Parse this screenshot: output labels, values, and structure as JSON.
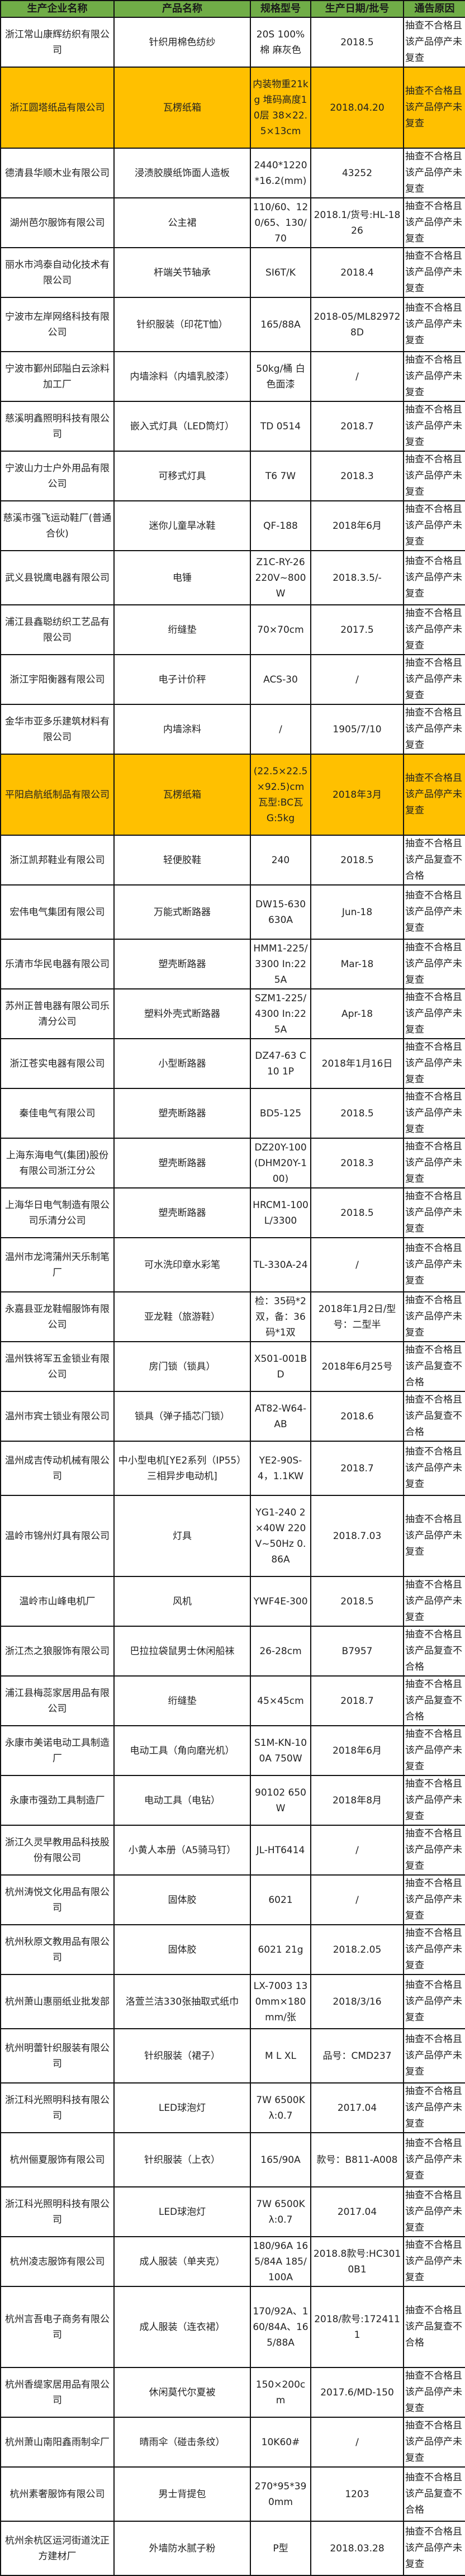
{
  "header": [
    "生产企业名称",
    "产品名称",
    "规格型号",
    "生产日期/批号",
    "通告原因"
  ],
  "colors": {
    "header_bg": "#70ad47",
    "highlight_bg": "#ffc000"
  },
  "rows": [
    {
      "company": "浙江常山康辉纺织有限公司",
      "product": "针织用棉色纺纱",
      "spec": "20S 100%棉 麻灰色",
      "date": "2018.5",
      "reason": "抽查不合格且该产品停产未复查",
      "highlight": false
    },
    {
      "company": "浙江圆塔纸品有限公司",
      "product": "瓦楞纸箱",
      "spec": "内装物重21kg 堆码高度10层 38×22.5×13cm",
      "date": "2018.04.20",
      "reason": "抽查不合格且该产品停产未复查",
      "highlight": true
    },
    {
      "company": "德清县华顺木业有限公司",
      "product": "浸渍胶膜纸饰面人造板",
      "spec": "2440*1220*16.2(mm)",
      "date": "43252",
      "reason": "抽查不合格且该产品停产未复查",
      "highlight": false
    },
    {
      "company": "湖州芭尔服饰有限公司",
      "product": "公主裙",
      "spec": "110/60、120/65、130/70",
      "date": "2018.1/货号:HL-1826",
      "reason": "抽查不合格且该产品停产未复查",
      "highlight": false
    },
    {
      "company": "丽水市鸿泰自动化技术有限公司",
      "product": "杆端关节轴承",
      "spec": "SI6T/K",
      "date": "2018.4",
      "reason": "抽查不合格且该产品停产未复查",
      "highlight": false
    },
    {
      "company": "宁波市左岸网络科技有限公司",
      "product": "针织服装（印花T恤）",
      "spec": "165/88A",
      "date": "2018-05/ML829728D",
      "reason": "抽查不合格且该产品停产未复查",
      "highlight": false
    },
    {
      "company": "宁波市鄞州邱隘白云涂料加工厂",
      "product": "内墙涂料（内墙乳胶漆）",
      "spec": "50kg/桶 白色面漆",
      "date": "/",
      "reason": "抽查不合格且该产品停产未复查",
      "highlight": false
    },
    {
      "company": "慈溪明鑫照明科技有限公司",
      "product": "嵌入式灯具（LED筒灯）",
      "spec": "TD 0514",
      "date": "2018.7",
      "reason": "抽查不合格且该产品停产未复查",
      "highlight": false
    },
    {
      "company": "宁波山力士户外用品有限公司",
      "product": "可移式灯具",
      "spec": "T6 7W",
      "date": "2018.3",
      "reason": "抽查不合格且该产品停产未复查",
      "highlight": false
    },
    {
      "company": "慈溪市强飞运动鞋厂(普通合伙)",
      "product": "迷你儿童旱冰鞋",
      "spec": "QF-188",
      "date": "2018年6月",
      "reason": "抽查不合格且该产品停产未复查",
      "highlight": false
    },
    {
      "company": "武义县锐鹰电器有限公司",
      "product": "电锤",
      "spec": "Z1C-RY-26 220V~800W",
      "date": "2018.3.5/-",
      "reason": "抽查不合格且该产品停产未复查",
      "highlight": false
    },
    {
      "company": "浦江县鑫聪纺织工艺品有限公司",
      "product": "绗缝垫",
      "spec": "70×70cm",
      "date": "2017.5",
      "reason": "抽查不合格且该产品停产未复查",
      "highlight": false
    },
    {
      "company": "浙江宇阳衡器有限公司",
      "product": "电子计价秤",
      "spec": "ACS-30",
      "date": "/",
      "reason": "抽查不合格且该产品停产未复查",
      "highlight": false
    },
    {
      "company": "金华市亚多乐建筑材料有限公司",
      "product": "内墙涂料",
      "spec": "/",
      "date": "1905/7/10",
      "reason": "抽查不合格且该产品停产未复查",
      "highlight": false
    },
    {
      "company": "平阳启航纸制品有限公司",
      "product": "瓦楞纸箱",
      "spec": "(22.5×22.5×92.5)cm 瓦型:BC瓦 G:5kg",
      "date": "2018年3月",
      "reason": "抽查不合格且该产品停产未复查",
      "highlight": true
    },
    {
      "company": "浙江凯邦鞋业有限公司",
      "product": "轻便胶鞋",
      "spec": "240",
      "date": "2018.5",
      "reason": "抽查不合格且该产品复查不合格",
      "highlight": false
    },
    {
      "company": "宏伟电气集团有限公司",
      "product": "万能式断路器",
      "spec": "DW15-630 630A",
      "date": "Jun-18",
      "reason": "抽查不合格且该产品停产未复查",
      "highlight": false
    },
    {
      "company": "乐清市华民电器有限公司",
      "product": "塑壳断路器",
      "spec": "HMM1-225/3300 In:225A",
      "date": "Mar-18",
      "reason": "抽查不合格且该产品停产未复查",
      "highlight": false
    },
    {
      "company": "苏州正普电器有限公司乐清分公司",
      "product": "塑料外壳式断路器",
      "spec": "SZM1-225/4300 In:225A",
      "date": "Apr-18",
      "reason": "抽查不合格且该产品停产未复查",
      "highlight": false
    },
    {
      "company": "浙江苍实电器有限公司",
      "product": "小型断路器",
      "spec": "DZ47-63 C10 1P",
      "date": "2018年1月16日",
      "reason": "抽查不合格且该产品停产未复查",
      "highlight": false
    },
    {
      "company": "秦佳电气有限公司",
      "product": "塑壳断路器",
      "spec": "BD5-125",
      "date": "2018.5",
      "reason": "抽查不合格且该产品停产未复查",
      "highlight": false
    },
    {
      "company": "上海东海电气(集团)股份有限公司浙江分公",
      "product": "塑壳断路器",
      "spec": "DZ20Y-100(DHM20Y-100)",
      "date": "2018.3",
      "reason": "抽查不合格且该产品停产未复查",
      "highlight": false
    },
    {
      "company": "上海华日电气制造有限公司乐清分公司",
      "product": "塑壳断路器",
      "spec": "HRCM1-100L/3300",
      "date": "2018.5",
      "reason": "抽查不合格且该产品停产未复查",
      "highlight": false
    },
    {
      "company": "温州市龙湾蒲州天乐制笔厂",
      "product": "可水洗印章水彩笔",
      "spec": "TL-330A-24",
      "date": "/",
      "reason": "抽查不合格且该产品停产未复查",
      "highlight": false
    },
    {
      "company": "永嘉县亚龙鞋帽服饰有限公司",
      "product": "亚龙鞋（旅游鞋）",
      "spec": "检：35码*2双，备：36码*1双",
      "date": "2018年1月2日/型号：二型半",
      "reason": "抽查不合格且该产品停产未复查",
      "highlight": false
    },
    {
      "company": "温州铁将军五金锁业有限公司",
      "product": "房门锁（锁具）",
      "spec": "X501-001BD",
      "date": "2018年6月25号",
      "reason": "抽查不合格且该产品复查不合格",
      "highlight": false
    },
    {
      "company": "温州市宾士锁业有限公司",
      "product": "锁具（弹子插芯门锁）",
      "spec": "AT82-W64-AB",
      "date": "2018.6",
      "reason": "抽查不合格且该产品复查不合格",
      "highlight": false
    },
    {
      "company": "温州成吉传动机械有限公司",
      "product": "中小型电机[YE2系列（IP55）三相异步电动机]",
      "spec": "YE2-90S-4，1.1KW",
      "date": "2018.7",
      "reason": "抽查不合格且该产品停产未复查",
      "highlight": false
    },
    {
      "company": "温岭市锦州灯具有限公司",
      "product": "灯具",
      "spec": "YG1-240 2×40W 220V~50Hz 0.86A",
      "date": "2018.7.03",
      "reason": "抽查不合格且该产品停产未复查",
      "highlight": false
    },
    {
      "company": "温岭市山峰电机厂",
      "product": "风机",
      "spec": "YWF4E-300",
      "date": "2018.5",
      "reason": "抽查不合格且该产品停产未复查",
      "highlight": false
    },
    {
      "company": "浙江杰之狼服饰有限公司",
      "product": "巴拉拉袋鼠男士休闲船袜",
      "spec": "26-28cm",
      "date": "B7957",
      "reason": "抽查不合格且该产品复查不合格",
      "highlight": false
    },
    {
      "company": "浦江县梅蕊家居用品有限公司",
      "product": "绗缝垫",
      "spec": "45×45cm",
      "date": "2018.7",
      "reason": "抽查不合格且该产品复查不合格",
      "highlight": false
    },
    {
      "company": "永康市美诺电动工具制造厂",
      "product": "电动工具（角向磨光机）",
      "spec": "S1M-KN-100A 750W",
      "date": "2018年6月",
      "reason": "抽查不合格且该产品停产未复查",
      "highlight": false
    },
    {
      "company": "永康市强劲工具制造厂",
      "product": "电动工具（电钻）",
      "spec": "90102 650W",
      "date": "2018年8月",
      "reason": "抽查不合格且该产品停产未复查",
      "highlight": false
    },
    {
      "company": "浙江久灵早教用品科技股份有限公司",
      "product": "小黄人本册（A5骑马钉）",
      "spec": "JL-HT6414",
      "date": "/",
      "reason": "抽查不合格且该产品停产未复查",
      "highlight": false
    },
    {
      "company": "杭州涛悦文化用品有限公司",
      "product": "固体胶",
      "spec": "6021",
      "date": "/",
      "reason": "抽查不合格且该产品停产未复查",
      "highlight": false
    },
    {
      "company": "杭州秋原文教用品有限公司",
      "product": "固体胶",
      "spec": "6021 21g",
      "date": "2018.2.05",
      "reason": "抽查不合格且该产品停产未复查",
      "highlight": false
    },
    {
      "company": "杭州萧山惠丽纸业批发部",
      "product": "洛萱兰洁330张抽取式纸巾",
      "spec": "LX-7003 130mm×180mm/张",
      "date": "2018/3/16",
      "reason": "抽查不合格且该产品停产未复查",
      "highlight": false
    },
    {
      "company": "杭州明蕾针织服装有限公司",
      "product": "针织服装（裙子）",
      "spec": "M L XL",
      "date": "品号：CMD237",
      "reason": "抽查不合格且该产品停产未复查",
      "highlight": false
    },
    {
      "company": "浙江科光照明科技有限公司",
      "product": "LED球泡灯",
      "spec": "7W 6500K λ:0.7",
      "date": "2017.04",
      "reason": "抽查不合格且该产品停产未复查",
      "highlight": false
    },
    {
      "company": "杭州俪夏服饰有限公司",
      "product": "针织服装（上衣）",
      "spec": "165/90A",
      "date": "款号：B811-A008",
      "reason": "抽查不合格且该产品停产未复查",
      "highlight": false
    },
    {
      "company": "浙江科光照明科技有限公司",
      "product": "LED球泡灯",
      "spec": "7W 6500K λ:0.7",
      "date": "2017.04",
      "reason": "抽查不合格且该产品停产未复查",
      "highlight": false
    },
    {
      "company": "杭州凌志服饰有限公司",
      "product": "成人服装（单夹克）",
      "spec": "180/96A 165/84A 185/100A",
      "date": "2018.8款号:HC3010B1",
      "reason": "抽查不合格且该产品停产未复查",
      "highlight": false
    },
    {
      "company": "杭州言吾电子商务有限公司",
      "product": "成人服装（连衣裙）",
      "spec": "170/92A、160/84A、165/88A",
      "date": "2018/款号:1724111",
      "reason": "抽查不合格且该产品复查不合格",
      "highlight": false
    },
    {
      "company": "杭州香缇家居用品有限公司",
      "product": "休闲莫代尔夏被",
      "spec": "150×200cm",
      "date": "2017.6/MD-150",
      "reason": "抽查不合格且该产品停产未复查",
      "highlight": false
    },
    {
      "company": "杭州萧山南阳鑫雨制伞厂",
      "product": "晴雨伞（碰击条纹）",
      "spec": "10K60#",
      "date": "/",
      "reason": "抽查不合格且该产品停产未复查",
      "highlight": false
    },
    {
      "company": "杭州素奢服饰有限公司",
      "product": "男士背提包",
      "spec": "270*95*390mm",
      "date": "1203",
      "reason": "抽查不合格且该产品复查不合格",
      "highlight": false
    },
    {
      "company": "杭州余杭区运河街道沈正方建材厂",
      "product": "外墙防水腻子粉",
      "spec": "P型",
      "date": "2018.03.28",
      "reason": "抽查不合格且该产品停产未复查",
      "highlight": false
    }
  ]
}
